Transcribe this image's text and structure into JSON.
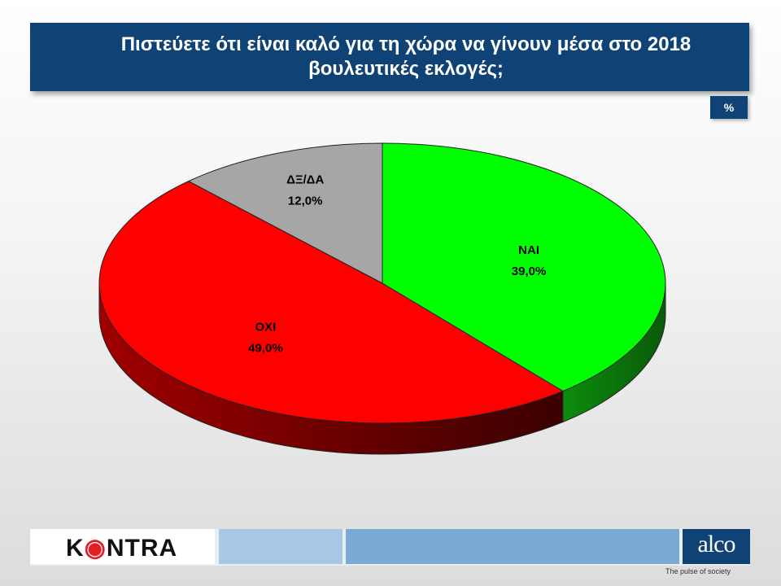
{
  "title": "Πιστεύετε ότι είναι καλό για τη χώρα να γίνουν μέσα στο 2018 βουλευτικές εκλογές;",
  "unit": "%",
  "chart_data": {
    "type": "pie",
    "title": "Πιστεύετε ότι είναι καλό για τη χώρα να γίνουν μέσα στο 2018 βουλευτικές εκλογές;",
    "unit": "%",
    "slices": [
      {
        "label": "ΝΑΙ",
        "value": 39.0,
        "display": "39,0%",
        "color": "#00ff00",
        "side_color": "#0a7a0a"
      },
      {
        "label": "ΟΧΙ",
        "value": 49.0,
        "display": "49,0%",
        "color": "#ff0000",
        "side_color": "#a00000"
      },
      {
        "label": "ΔΞ/ΔΑ",
        "value": 12.0,
        "display": "12,0%",
        "color": "#a6a6a6",
        "side_color": "#6e6e6e"
      }
    ]
  },
  "footer": {
    "logo_left": "KONTRA",
    "logo_right": "alco",
    "tagline": "The pulse of society"
  },
  "colors": {
    "title_bg": "#0f4275",
    "footer_mid": "#a9c6e4",
    "footer_right": "#7aa9d6"
  }
}
